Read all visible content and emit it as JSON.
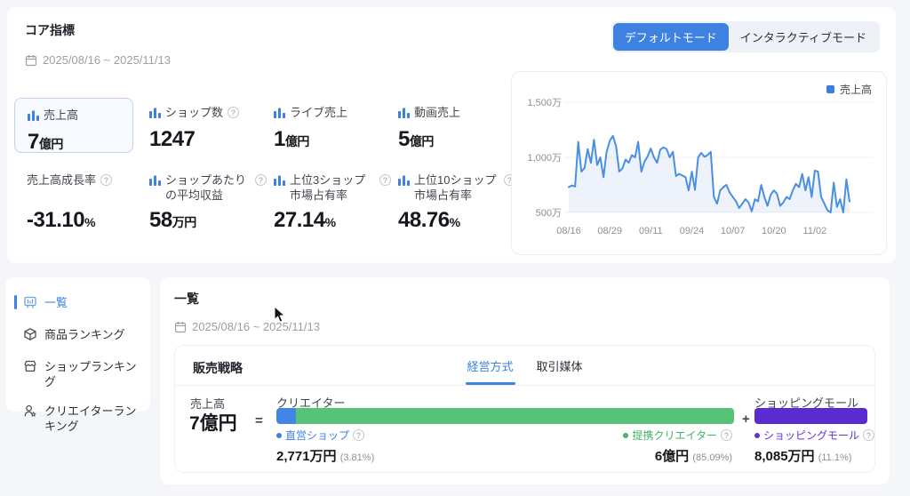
{
  "core": {
    "title": "コア指標",
    "date_range": "2025/08/16 ~ 2025/11/13",
    "mode_toggle": {
      "default_label": "デフォルトモード",
      "interactive_label": "インタラクティブモード"
    },
    "metrics": [
      {
        "label": "売上高",
        "value": "7",
        "unit": "億円"
      },
      {
        "label": "ショップ数",
        "value": "1247",
        "unit": ""
      },
      {
        "label": "ライブ売上",
        "value": "1",
        "unit": "億円"
      },
      {
        "label": "動画売上",
        "value": "5",
        "unit": "億円"
      },
      {
        "label": "売上高成長率",
        "value": "-31.10",
        "unit": "%"
      },
      {
        "label": "ショップあたりの平均収益",
        "value": "58",
        "unit": "万円"
      },
      {
        "label": "上位3ショップ市場占有率",
        "value": "27.14",
        "unit": "%"
      },
      {
        "label": "上位10ショップ市場占有率",
        "value": "48.76",
        "unit": "%"
      }
    ]
  },
  "chart_data": {
    "type": "line",
    "title": "",
    "legend": "売上高",
    "line_color": "#4a8fe2",
    "ylabel": "",
    "xlabel": "",
    "ylim": [
      500,
      1500
    ],
    "y_ticks": [
      {
        "value": 500,
        "label": "500万"
      },
      {
        "value": 1000,
        "label": "1,000万"
      },
      {
        "value": 1500,
        "label": "1,500万"
      }
    ],
    "x_tick_labels": [
      "08/16",
      "08/29",
      "09/11",
      "09/24",
      "10/07",
      "10/20",
      "11/02"
    ],
    "x_tick_indices": [
      0,
      13,
      26,
      39,
      52,
      65,
      78
    ],
    "unit": "万円",
    "values": [
      730,
      745,
      735,
      1140,
      870,
      905,
      1075,
      950,
      1160,
      930,
      1000,
      820,
      1050,
      1150,
      1195,
      1100,
      870,
      900,
      980,
      950,
      1020,
      1000,
      1140,
      870,
      960,
      1010,
      1080,
      1000,
      950,
      1070,
      1090,
      1075,
      1000,
      1050,
      830,
      850,
      835,
      820,
      700,
      870,
      705,
      1000,
      1040,
      1005,
      1020,
      1050,
      640,
      580,
      700,
      730,
      750,
      680,
      640,
      600,
      540,
      580,
      620,
      590,
      510,
      620,
      600,
      750,
      640,
      560,
      660,
      700,
      670,
      560,
      590,
      640,
      620,
      700,
      760,
      730,
      850,
      700,
      820,
      640,
      880,
      870,
      640,
      580,
      520,
      500,
      770,
      550,
      620,
      500,
      800,
      600
    ]
  },
  "sidebar": {
    "items": [
      {
        "label": "一覧"
      },
      {
        "label": "商品ランキング"
      },
      {
        "label": "ショップランキング"
      },
      {
        "label": "クリエイターランキング"
      }
    ]
  },
  "panel": {
    "title": "一覧",
    "date_range": "2025/08/16 ~ 2025/11/13",
    "strategy": {
      "title": "販売戦略",
      "tabs": [
        {
          "label": "経営方式"
        },
        {
          "label": "取引媒体"
        }
      ],
      "total_label": "売上高",
      "total_value": "7億円",
      "equals": "=",
      "plus": "+",
      "creator_group_label": "クリエイター",
      "mall_group_label": "ショッピングモール",
      "segments": [
        {
          "name": "直営ショップ",
          "value": "2,771万円",
          "pct": "(3.81%)",
          "pct_num": 3.81,
          "color": "#4285e6"
        },
        {
          "name": "提携クリエイター",
          "value": "6億円",
          "pct": "(85.09%)",
          "pct_num": 85.09,
          "color": "#57c377"
        },
        {
          "name": "ショッピングモール",
          "value": "8,085万円",
          "pct": "(11.1%)",
          "pct_num": 11.1,
          "color": "#5b2bd2"
        }
      ]
    }
  }
}
